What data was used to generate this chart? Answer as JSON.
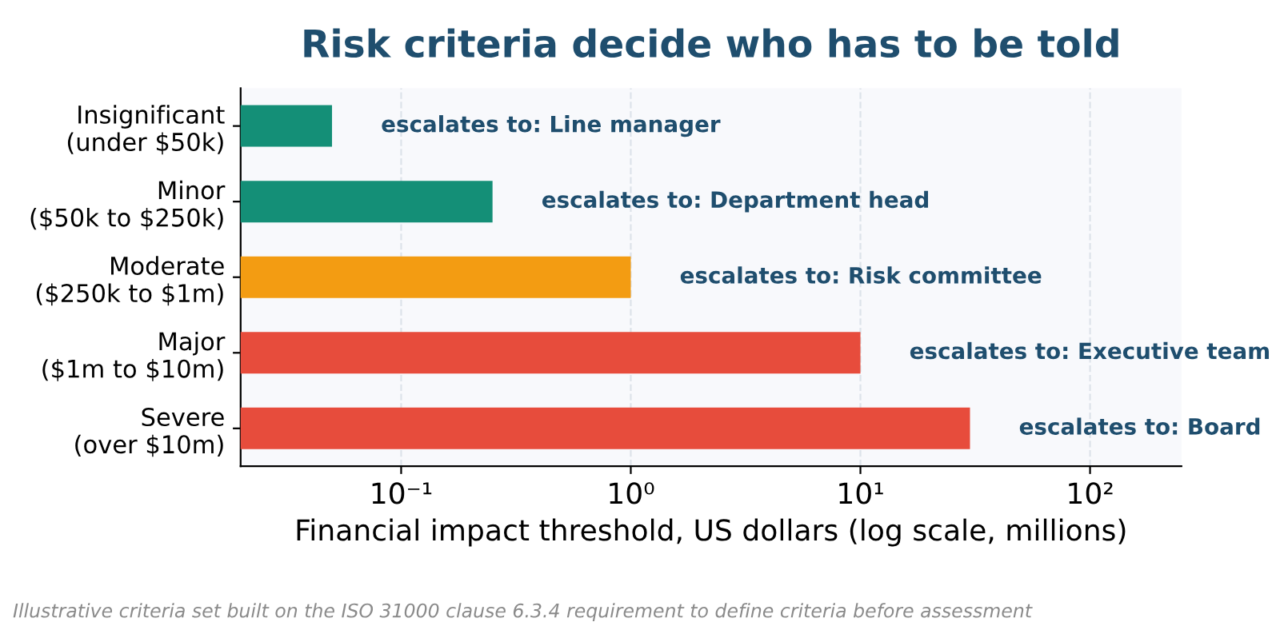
{
  "chart_data": {
    "type": "bar",
    "orientation": "horizontal",
    "title": "Risk criteria decide who has to be told",
    "categories": [
      "Insignificant\n(under $50k)",
      "Minor\n($50k to $250k)",
      "Moderate\n($250k to $1m)",
      "Major\n($1m to $10m)",
      "Severe\n(over $10m)"
    ],
    "values": [
      0.05,
      0.25,
      1,
      10,
      30
    ],
    "colors": [
      "#148f77",
      "#148f77",
      "#f39c12",
      "#e74c3c",
      "#e74c3c"
    ],
    "xlabel": "Financial impact threshold, US dollars (log scale, millions)",
    "log": "x",
    "xlim": [
      0.02,
      250
    ],
    "xticks": [
      {
        "value": 0.1,
        "label": "10⁻¹"
      },
      {
        "value": 1,
        "label": "10⁰"
      },
      {
        "value": 10,
        "label": "10¹"
      },
      {
        "value": 100,
        "label": "10²"
      }
    ],
    "grid": "x",
    "annotations": [
      {
        "text": "escalates to: Line manager",
        "x": 0.05,
        "y": "Insignificant\n(under $50k)"
      },
      {
        "text": "escalates to: Department head",
        "x": 0.25,
        "y": "Minor\n($50k to $250k)"
      },
      {
        "text": "escalates to: Risk committee",
        "x": 1,
        "y": "Moderate\n($250k to $1m)"
      },
      {
        "text": "escalates to: Executive team",
        "x": 10,
        "y": "Major\n($1m to $10m)"
      },
      {
        "text": "escalates to: Board",
        "x": 30,
        "y": "Severe\n(over $10m)"
      },
      "Illustrative criteria set built on the ISO 31000 clause 6.3.4 requirement to define criteria before assessment"
    ]
  }
}
